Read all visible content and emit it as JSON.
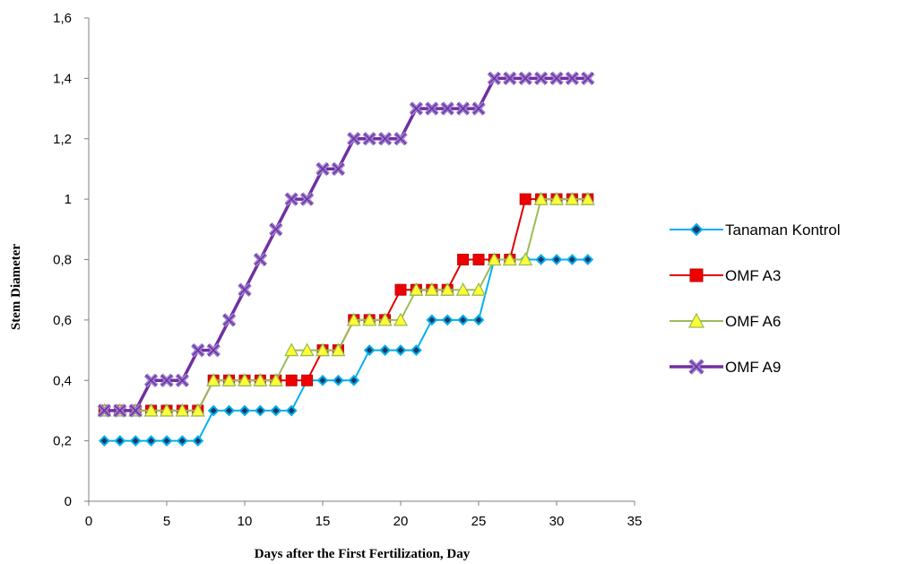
{
  "chart_data": {
    "type": "line",
    "title": "",
    "xlabel": "Days after the First Fertilization, Day",
    "ylabel": "Stem Diameter",
    "xlim": [
      0,
      35
    ],
    "ylim": [
      0,
      1.6
    ],
    "xticks": [
      "0",
      "5",
      "10",
      "15",
      "20",
      "25",
      "30",
      "35"
    ],
    "yticks": [
      "0",
      "0,2",
      "0,4",
      "0,6",
      "0,8",
      "1",
      "1,2",
      "1,4",
      "1,6"
    ],
    "grid": false,
    "legend_position": "right",
    "x": [
      1,
      2,
      3,
      4,
      5,
      6,
      7,
      8,
      9,
      10,
      11,
      12,
      13,
      14,
      15,
      16,
      17,
      18,
      19,
      20,
      21,
      22,
      23,
      24,
      25,
      26,
      27,
      28,
      29,
      30,
      31,
      32
    ],
    "series": [
      {
        "name": "Tanaman Kontrol",
        "color": "#00b0f0",
        "marker": "diamond",
        "values": [
          0.2,
          0.2,
          0.2,
          0.2,
          0.2,
          0.2,
          0.2,
          0.3,
          0.3,
          0.3,
          0.3,
          0.3,
          0.3,
          0.4,
          0.4,
          0.4,
          0.4,
          0.5,
          0.5,
          0.5,
          0.5,
          0.6,
          0.6,
          0.6,
          0.6,
          0.8,
          0.8,
          0.8,
          0.8,
          0.8,
          0.8,
          0.8
        ]
      },
      {
        "name": "OMF A3",
        "color": "#e00000",
        "marker": "square",
        "values": [
          0.3,
          0.3,
          0.3,
          0.3,
          0.3,
          0.3,
          0.3,
          0.4,
          0.4,
          0.4,
          0.4,
          0.4,
          0.4,
          0.4,
          0.5,
          0.5,
          0.6,
          0.6,
          0.6,
          0.7,
          0.7,
          0.7,
          0.7,
          0.8,
          0.8,
          0.8,
          0.8,
          1.0,
          1.0,
          1.0,
          1.0,
          1.0
        ]
      },
      {
        "name": "OMF A6",
        "color": "#9bbb59",
        "marker": "triangle",
        "values": [
          0.3,
          0.3,
          0.3,
          0.3,
          0.3,
          0.3,
          0.3,
          0.4,
          0.4,
          0.4,
          0.4,
          0.4,
          0.5,
          0.5,
          0.5,
          0.5,
          0.6,
          0.6,
          0.6,
          0.6,
          0.7,
          0.7,
          0.7,
          0.7,
          0.7,
          0.8,
          0.8,
          0.8,
          1.0,
          1.0,
          1.0,
          1.0
        ]
      },
      {
        "name": "OMF A9",
        "color": "#7030a0",
        "marker": "x",
        "values": [
          0.3,
          0.3,
          0.3,
          0.4,
          0.4,
          0.4,
          0.5,
          0.5,
          0.6,
          0.7,
          0.8,
          0.9,
          1.0,
          1.0,
          1.1,
          1.1,
          1.2,
          1.2,
          1.2,
          1.2,
          1.3,
          1.3,
          1.3,
          1.3,
          1.3,
          1.4,
          1.4,
          1.4,
          1.4,
          1.4,
          1.4,
          1.4
        ]
      }
    ]
  }
}
